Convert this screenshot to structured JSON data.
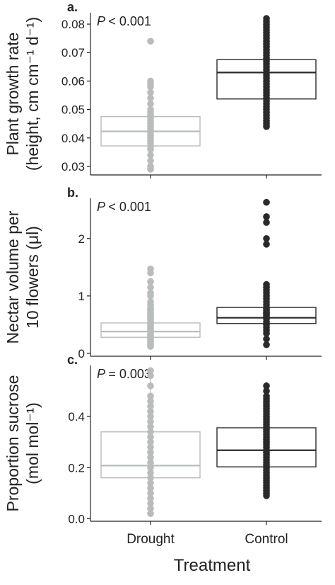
{
  "figure": {
    "xlabel": "Treatment"
  },
  "colors": {
    "drought": "#b9bcbc",
    "control": "#2a2a2a",
    "axis": "#222222"
  },
  "chart_data": [
    {
      "type": "box",
      "panel_label": "a.",
      "annotation": "< 0.001",
      "ylabel_lines": [
        "Plant growth rate",
        "(height, cm cm⁻¹ d⁻¹)"
      ],
      "categories": [
        "Drought",
        "Control"
      ],
      "ylim": [
        0.027,
        0.084
      ],
      "yticks": [
        0.03,
        0.04,
        0.05,
        0.06,
        0.07,
        0.08
      ],
      "ytick_labels": [
        "0.03",
        "0.04",
        "0.05",
        "0.06",
        "0.07",
        "0.08"
      ],
      "boxes": [
        {
          "name": "Drought",
          "q1": 0.0372,
          "median": 0.0423,
          "q3": 0.0475,
          "whisker_low": null,
          "whisker_high": null
        },
        {
          "name": "Control",
          "q1": 0.0537,
          "median": 0.063,
          "q3": 0.0675,
          "whisker_low": 0.044,
          "whisker_high": 0.0825
        }
      ],
      "points": [
        [
          0.029,
          0.03,
          0.032,
          0.034,
          0.036,
          0.037,
          0.038,
          0.039,
          0.04,
          0.041,
          0.042,
          0.043,
          0.044,
          0.045,
          0.046,
          0.047,
          0.048,
          0.049,
          0.05,
          0.052,
          0.054,
          0.056,
          0.058,
          0.059,
          0.06,
          0.074
        ],
        [
          0.044,
          0.045,
          0.046,
          0.047,
          0.048,
          0.049,
          0.05,
          0.051,
          0.052,
          0.053,
          0.054,
          0.055,
          0.056,
          0.057,
          0.058,
          0.059,
          0.06,
          0.061,
          0.062,
          0.063,
          0.064,
          0.065,
          0.066,
          0.067,
          0.068,
          0.069,
          0.07,
          0.071,
          0.072,
          0.073,
          0.074,
          0.075,
          0.076,
          0.077,
          0.078,
          0.079,
          0.08,
          0.081,
          0.082
        ]
      ]
    },
    {
      "type": "box",
      "panel_label": "b.",
      "annotation": "< 0.001",
      "ylabel_lines": [
        "Nectar volume per",
        "10 flowers (μl)"
      ],
      "categories": [
        "Drought",
        "Control"
      ],
      "ylim": [
        -0.05,
        2.7
      ],
      "yticks": [
        0,
        1,
        2
      ],
      "ytick_labels": [
        "0",
        "1",
        "2"
      ],
      "boxes": [
        {
          "name": "Drought",
          "q1": 0.28,
          "median": 0.38,
          "q3": 0.53,
          "whisker_low": null,
          "whisker_high": null
        },
        {
          "name": "Control",
          "q1": 0.52,
          "median": 0.62,
          "q3": 0.8,
          "whisker_low": null,
          "whisker_high": null
        }
      ],
      "points": [
        [
          0.12,
          0.15,
          0.18,
          0.2,
          0.22,
          0.25,
          0.28,
          0.3,
          0.32,
          0.35,
          0.38,
          0.4,
          0.42,
          0.45,
          0.48,
          0.5,
          0.52,
          0.55,
          0.58,
          0.6,
          0.62,
          0.65,
          0.68,
          0.7,
          0.72,
          0.75,
          0.78,
          0.8,
          0.85,
          0.9,
          1.0,
          1.05,
          1.15,
          1.25,
          1.4,
          1.47
        ],
        [
          0.15,
          0.25,
          0.35,
          0.4,
          0.45,
          0.5,
          0.55,
          0.6,
          0.62,
          0.65,
          0.68,
          0.7,
          0.72,
          0.75,
          0.78,
          0.8,
          0.85,
          0.9,
          0.95,
          1.0,
          1.05,
          1.1,
          1.15,
          1.2,
          1.9,
          2.0,
          2.28,
          2.38,
          2.63
        ]
      ]
    },
    {
      "type": "box",
      "panel_label": "c.",
      "annotation": "= 0.003",
      "ylabel_lines": [
        "Proportion sucrose",
        "(mol mol⁻¹)"
      ],
      "categories": [
        "Drought",
        "Control"
      ],
      "ylim": [
        -0.01,
        0.6
      ],
      "yticks": [
        0.0,
        0.2,
        0.4
      ],
      "ytick_labels": [
        "0.0",
        "0.2",
        "0.4"
      ],
      "boxes": [
        {
          "name": "Drought",
          "q1": 0.16,
          "median": 0.208,
          "q3": 0.34,
          "whisker_low": 0.02,
          "whisker_high": 0.58
        },
        {
          "name": "Control",
          "q1": 0.203,
          "median": 0.268,
          "q3": 0.356,
          "whisker_low": 0.085,
          "whisker_high": 0.535
        }
      ],
      "points": [
        [
          0.02,
          0.04,
          0.06,
          0.08,
          0.1,
          0.12,
          0.14,
          0.16,
          0.18,
          0.2,
          0.22,
          0.24,
          0.26,
          0.28,
          0.3,
          0.32,
          0.34,
          0.36,
          0.38,
          0.4,
          0.42,
          0.44,
          0.46,
          0.48,
          0.52,
          0.56,
          0.58
        ],
        [
          0.09,
          0.1,
          0.11,
          0.12,
          0.13,
          0.14,
          0.15,
          0.16,
          0.17,
          0.18,
          0.19,
          0.2,
          0.21,
          0.22,
          0.23,
          0.24,
          0.25,
          0.26,
          0.27,
          0.28,
          0.29,
          0.3,
          0.31,
          0.32,
          0.33,
          0.34,
          0.35,
          0.36,
          0.37,
          0.38,
          0.39,
          0.4,
          0.41,
          0.42,
          0.43,
          0.44,
          0.45,
          0.46,
          0.47,
          0.48,
          0.5,
          0.52
        ]
      ]
    }
  ]
}
